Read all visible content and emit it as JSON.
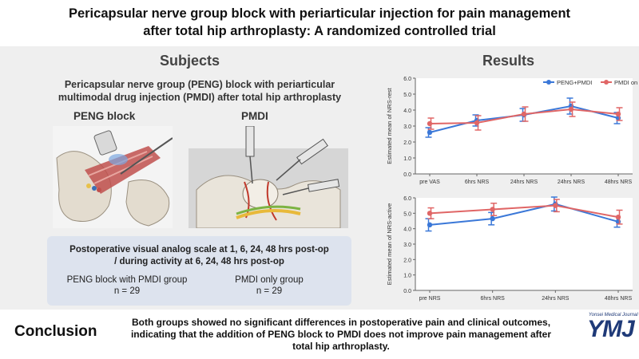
{
  "title": {
    "line1": "Pericapsular nerve group block with periarticular injection for pain management",
    "line2": "after total hip arthroplasty: A randomized controlled trial"
  },
  "subjects": {
    "heading": "Subjects",
    "subhead_line1": "Pericapsular nerve group (PENG) block with periarticular",
    "subhead_line2": "multimodal drug injection (PMDI) after total hip arthroplasty",
    "peng_label": "PENG block",
    "pmdi_label": "PMDI"
  },
  "outcome_box": {
    "line1": "Postoperative visual analog scale at 1, 6, 24, 48 hrs post-op",
    "line2": "/ during activity at 6, 24, 48 hrs post-op",
    "group1_name": "PENG block with PMDI group",
    "group1_n": "n = 29",
    "group2_name": "PMDI only group",
    "group2_n": "n = 29"
  },
  "results": {
    "heading": "Results"
  },
  "chart_data": [
    {
      "type": "line",
      "ylabel": "Estimated mean of NRS-rest",
      "categories": [
        "pre VAS",
        "6hrs NRS",
        "24hrs NRS",
        "24hrs NRS",
        "48hrs NRS"
      ],
      "ylim": [
        0,
        6
      ],
      "yticks": [
        "0.0",
        "1.0",
        "2.0",
        "3.0",
        "4.0",
        "5.0",
        "6.0"
      ],
      "legend": [
        "PENG+PMDI",
        "PMDI only"
      ],
      "series": [
        {
          "name": "PENG+PMDI",
          "color": "#3b78d8",
          "values": [
            2.6,
            3.35,
            3.7,
            4.25,
            3.5
          ],
          "errors": [
            0.3,
            0.35,
            0.4,
            0.5,
            0.35
          ]
        },
        {
          "name": "PMDI only",
          "color": "#e06666",
          "values": [
            3.15,
            3.2,
            3.75,
            4.05,
            3.75
          ],
          "errors": [
            0.35,
            0.45,
            0.45,
            0.45,
            0.4
          ]
        }
      ]
    },
    {
      "type": "line",
      "ylabel": "Estimated mean of NRS-active",
      "categories": [
        "pre NRS",
        "6hrs NRS",
        "24hrs NRS",
        "48hrs NRS"
      ],
      "ylim": [
        0,
        6
      ],
      "yticks": [
        "0.0",
        "1.0",
        "2.0",
        "3.0",
        "4.0",
        "5.0",
        "6.0"
      ],
      "series": [
        {
          "name": "PENG+PMDI",
          "color": "#3b78d8",
          "values": [
            4.25,
            4.65,
            5.6,
            4.45
          ],
          "errors": [
            0.4,
            0.4,
            0.45,
            0.35
          ]
        },
        {
          "name": "PMDI only",
          "color": "#e06666",
          "values": [
            5.0,
            5.25,
            5.5,
            4.75
          ],
          "errors": [
            0.35,
            0.4,
            0.4,
            0.45
          ]
        }
      ]
    }
  ],
  "conclusion": {
    "label": "Conclusion",
    "line1": "Both groups showed no significant differences in postoperative pain and clinical outcomes,",
    "line2": "indicating that the addition of PENG block to PMDI does not improve pain management after",
    "line3": "total hip arthroplasty."
  },
  "logo": {
    "text": "YMJ",
    "subtitle": "Yonsei Medical Journal"
  }
}
